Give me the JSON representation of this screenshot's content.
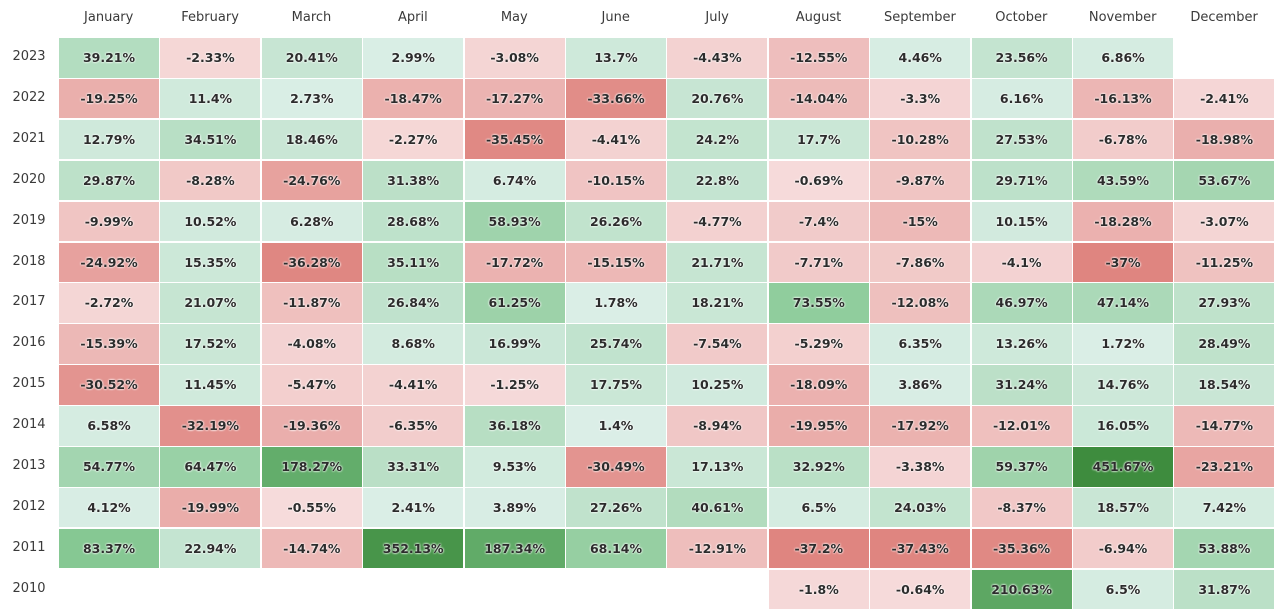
{
  "chart_data": {
    "type": "heatmap",
    "columns": [
      "January",
      "February",
      "March",
      "April",
      "May",
      "June",
      "July",
      "August",
      "September",
      "October",
      "November",
      "December"
    ],
    "rows": [
      {
        "year": "2023",
        "values": [
          39.21,
          -2.33,
          20.41,
          2.99,
          -3.08,
          13.7,
          -4.43,
          -12.55,
          4.46,
          23.56,
          6.86,
          null
        ]
      },
      {
        "year": "2022",
        "values": [
          -19.25,
          11.4,
          2.73,
          -18.47,
          -17.27,
          -33.66,
          20.76,
          -14.04,
          -3.3,
          6.16,
          -16.13,
          -2.41
        ]
      },
      {
        "year": "2021",
        "values": [
          12.79,
          34.51,
          18.46,
          -2.27,
          -35.45,
          -4.41,
          24.2,
          17.7,
          -10.28,
          27.53,
          -6.78,
          -18.98
        ]
      },
      {
        "year": "2020",
        "values": [
          29.87,
          -8.28,
          -24.76,
          31.38,
          6.74,
          -10.15,
          22.8,
          -0.69,
          -9.87,
          29.71,
          43.59,
          53.67
        ]
      },
      {
        "year": "2019",
        "values": [
          -9.99,
          10.52,
          6.28,
          28.68,
          58.93,
          26.26,
          -4.77,
          -7.4,
          -15,
          10.15,
          -18.28,
          -3.07
        ]
      },
      {
        "year": "2018",
        "values": [
          -24.92,
          15.35,
          -36.28,
          35.11,
          -17.72,
          -15.15,
          21.71,
          -7.71,
          -7.86,
          -4.1,
          -37,
          -11.25
        ]
      },
      {
        "year": "2017",
        "values": [
          -2.72,
          21.07,
          -11.87,
          26.84,
          61.25,
          1.78,
          18.21,
          73.55,
          -12.08,
          46.97,
          47.14,
          27.93
        ]
      },
      {
        "year": "2016",
        "values": [
          -15.39,
          17.52,
          -4.08,
          8.68,
          16.99,
          25.74,
          -7.54,
          -5.29,
          6.35,
          13.26,
          1.72,
          28.49
        ]
      },
      {
        "year": "2015",
        "values": [
          -30.52,
          11.45,
          -5.47,
          -4.41,
          -1.25,
          17.75,
          10.25,
          -18.09,
          3.86,
          31.24,
          14.76,
          18.54
        ]
      },
      {
        "year": "2014",
        "values": [
          6.58,
          -32.19,
          -19.36,
          -6.35,
          36.18,
          1.4,
          -8.94,
          -19.95,
          -17.92,
          -12.01,
          16.05,
          -14.77
        ]
      },
      {
        "year": "2013",
        "values": [
          54.77,
          64.47,
          178.27,
          33.31,
          9.53,
          -30.49,
          17.13,
          32.92,
          -3.38,
          59.37,
          451.67,
          -23.21
        ]
      },
      {
        "year": "2012",
        "values": [
          4.12,
          -19.99,
          -0.55,
          2.41,
          3.89,
          27.26,
          40.61,
          6.5,
          24.03,
          -8.37,
          18.57,
          7.42
        ]
      },
      {
        "year": "2011",
        "values": [
          83.37,
          22.94,
          -14.74,
          352.13,
          187.34,
          68.14,
          -12.91,
          -37.2,
          -37.43,
          -35.36,
          -6.94,
          53.88
        ]
      },
      {
        "year": "2010",
        "values": [
          null,
          null,
          null,
          null,
          null,
          null,
          null,
          -1.8,
          -0.64,
          210.63,
          6.5,
          31.87
        ]
      }
    ],
    "value_suffix": "%",
    "colors": {
      "neg_light": "#f6dcdc",
      "neg_dark": "#df8580",
      "pos_light": "#dcefe8",
      "pos_mid": "#7fc58c",
      "pos_dark": "#3d8b3d"
    }
  }
}
